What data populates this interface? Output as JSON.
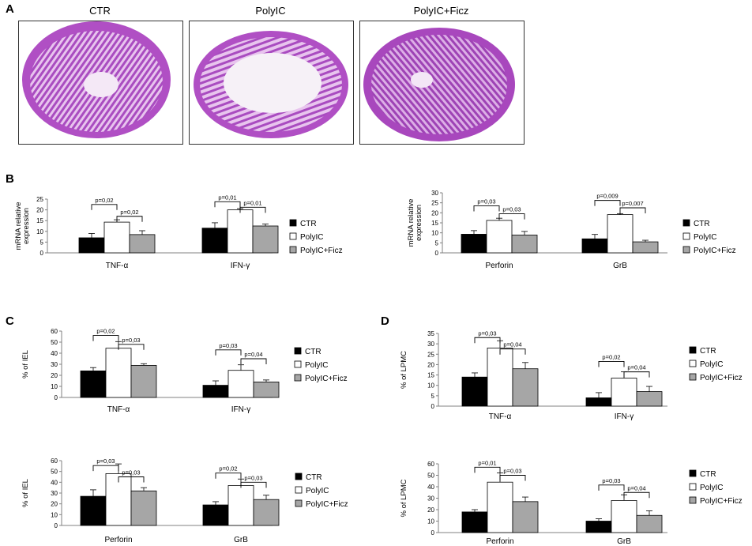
{
  "panel_letters": [
    "A",
    "B",
    "C",
    "D"
  ],
  "micrographs": [
    {
      "label": "CTR"
    },
    {
      "label": "PolyIC"
    },
    {
      "label": "PolyIC+Ficz"
    }
  ],
  "colors": {
    "CTR": "#000000",
    "PolyIC": "#ffffff",
    "PolyIC+Ficz": "#a6a6a6",
    "tissue": "#b04fc4",
    "tissue_light": "#e2b4ea"
  },
  "chart_data": [
    {
      "id": "B-left",
      "type": "bar",
      "categories": [
        "TNF-α",
        "IFN-γ"
      ],
      "series": [
        {
          "name": "CTR",
          "values": [
            7,
            11.5
          ],
          "err": [
            2,
            2.5
          ]
        },
        {
          "name": "PolyIC",
          "values": [
            14.3,
            20
          ],
          "err": [
            1.1,
            0.6
          ]
        },
        {
          "name": "PolyIC+Ficz",
          "values": [
            8.5,
            12.5
          ],
          "err": [
            1.8,
            0.9
          ]
        }
      ],
      "ylabel": "mRNA relative expression",
      "ylabel_lines": [
        "mRNA relative",
        "expression"
      ],
      "ylim": [
        0,
        25
      ],
      "yticks": [
        0,
        5,
        10,
        15,
        20,
        25
      ],
      "legend": [
        "CTR",
        "PolyIC",
        "PolyIC+Ficz"
      ],
      "annotations": [
        {
          "text": "p=0,02",
          "cat": 0,
          "from": 0,
          "to": 1,
          "y": 22.5
        },
        {
          "text": "p=0,02",
          "cat": 0,
          "from": 1,
          "to": 2,
          "y": 17
        },
        {
          "text": "p=0,01",
          "cat": 1,
          "from": 0,
          "to": 1,
          "y": 23.8
        },
        {
          "text": "p=0,01",
          "cat": 1,
          "from": 1,
          "to": 2,
          "y": 21.2
        }
      ]
    },
    {
      "id": "B-right",
      "type": "bar",
      "categories": [
        "Perforin",
        "GrB"
      ],
      "series": [
        {
          "name": "CTR",
          "values": [
            9.3,
            7
          ],
          "err": [
            1.8,
            2.2
          ]
        },
        {
          "name": "PolyIC",
          "values": [
            16.2,
            19.1
          ],
          "err": [
            1.1,
            0.5
          ]
        },
        {
          "name": "PolyIC+Ficz",
          "values": [
            8.9,
            5.5
          ],
          "err": [
            1.8,
            0.8
          ]
        }
      ],
      "ylabel": "mRNA relative expression",
      "ylabel_lines": [
        "mRNA relative",
        "expression"
      ],
      "ylim": [
        0,
        30
      ],
      "yticks": [
        0,
        5,
        10,
        15,
        20,
        25,
        30
      ],
      "legend": [
        "CTR",
        "PolyIC",
        "PolyIC+Ficz"
      ],
      "annotations": [
        {
          "text": "p=0,03",
          "cat": 0,
          "from": 0,
          "to": 1,
          "y": 23.5
        },
        {
          "text": "p=0,03",
          "cat": 0,
          "from": 1,
          "to": 2,
          "y": 19.5
        },
        {
          "text": "p=0,009",
          "cat": 1,
          "from": 0,
          "to": 1,
          "y": 26.2
        },
        {
          "text": "p=0,007",
          "cat": 1,
          "from": 1,
          "to": 2,
          "y": 22.5
        }
      ]
    },
    {
      "id": "C-top",
      "type": "bar",
      "categories": [
        "TNF-α",
        "IFN-γ"
      ],
      "series": [
        {
          "name": "CTR",
          "values": [
            24,
            11
          ],
          "err": [
            3,
            4
          ]
        },
        {
          "name": "PolyIC",
          "values": [
            44.5,
            24.5
          ],
          "err": [
            6,
            5
          ]
        },
        {
          "name": "PolyIC+Ficz",
          "values": [
            29,
            14
          ],
          "err": [
            1.5,
            1.8
          ]
        }
      ],
      "ylabel": "% of IEL",
      "ylim": [
        0,
        60
      ],
      "yticks": [
        0,
        10,
        20,
        30,
        40,
        50,
        60
      ],
      "legend": [
        "CTR",
        "PolyIC",
        "PolyIC+Ficz"
      ],
      "annotations": [
        {
          "text": "p=0,02",
          "cat": 0,
          "from": 0,
          "to": 1,
          "y": 56
        },
        {
          "text": "p=0,03",
          "cat": 0,
          "from": 1,
          "to": 2,
          "y": 48
        },
        {
          "text": "p=0,03",
          "cat": 1,
          "from": 0,
          "to": 1,
          "y": 43
        },
        {
          "text": "p=0,04",
          "cat": 1,
          "from": 1,
          "to": 2,
          "y": 35
        }
      ]
    },
    {
      "id": "D-top",
      "type": "bar",
      "categories": [
        "TNF-α",
        "IFN-γ"
      ],
      "series": [
        {
          "name": "CTR",
          "values": [
            14,
            4
          ],
          "err": [
            2,
            2.5
          ]
        },
        {
          "name": "PolyIC",
          "values": [
            28,
            13.5
          ],
          "err": [
            3.5,
            3
          ]
        },
        {
          "name": "PolyIC+Ficz",
          "values": [
            18,
            7
          ],
          "err": [
            3,
            2.5
          ]
        }
      ],
      "ylabel": "% of LPMC",
      "ylim": [
        0,
        35
      ],
      "yticks": [
        0,
        5,
        10,
        15,
        20,
        25,
        30,
        35
      ],
      "legend": [
        "CTR",
        "PolyIC",
        "PolyIC+Ficz"
      ],
      "annotations": [
        {
          "text": "p=0,03",
          "cat": 0,
          "from": 0,
          "to": 1,
          "y": 33
        },
        {
          "text": "p=0,04",
          "cat": 0,
          "from": 1,
          "to": 2,
          "y": 27.5
        },
        {
          "text": "p=0,02",
          "cat": 1,
          "from": 0,
          "to": 1,
          "y": 21.5
        },
        {
          "text": "p=0,04",
          "cat": 1,
          "from": 1,
          "to": 2,
          "y": 16.5
        }
      ]
    },
    {
      "id": "C-bottom",
      "type": "bar",
      "categories": [
        "Perforin",
        "GrB"
      ],
      "series": [
        {
          "name": "CTR",
          "values": [
            27,
            19
          ],
          "err": [
            6,
            3
          ]
        },
        {
          "name": "PolyIC",
          "values": [
            48,
            37
          ],
          "err": [
            9,
            6
          ]
        },
        {
          "name": "PolyIC+Ficz",
          "values": [
            32,
            24
          ],
          "err": [
            3,
            4
          ]
        }
      ],
      "ylabel": "% of IEL",
      "ylim": [
        0,
        60
      ],
      "yticks": [
        0,
        10,
        20,
        30,
        40,
        50,
        60
      ],
      "legend": [
        "CTR",
        "PolyIC",
        "PolyIC+Ficz"
      ],
      "annotations": [
        {
          "text": "p=0,03",
          "cat": 0,
          "from": 0,
          "to": 1,
          "y": 55.5
        },
        {
          "text": "p=0,03",
          "cat": 0,
          "from": 1,
          "to": 2,
          "y": 45
        },
        {
          "text": "p=0,02",
          "cat": 1,
          "from": 0,
          "to": 1,
          "y": 48.5
        },
        {
          "text": "p=0,03",
          "cat": 1,
          "from": 1,
          "to": 2,
          "y": 40
        }
      ]
    },
    {
      "id": "D-bottom",
      "type": "bar",
      "categories": [
        "Perforin",
        "GrB"
      ],
      "series": [
        {
          "name": "CTR",
          "values": [
            18,
            10
          ],
          "err": [
            2,
            2
          ]
        },
        {
          "name": "PolyIC",
          "values": [
            44,
            28
          ],
          "err": [
            8,
            5
          ]
        },
        {
          "name": "PolyIC+Ficz",
          "values": [
            27,
            15
          ],
          "err": [
            4,
            4
          ]
        }
      ],
      "ylabel": "% of LPMC",
      "ylim": [
        0,
        60
      ],
      "yticks": [
        0,
        10,
        20,
        30,
        40,
        50,
        60
      ],
      "legend": [
        "CTR",
        "PolyIC",
        "PolyIC+Ficz"
      ],
      "annotations": [
        {
          "text": "p=0,01",
          "cat": 0,
          "from": 0,
          "to": 1,
          "y": 57
        },
        {
          "text": "p=0,03",
          "cat": 0,
          "from": 1,
          "to": 2,
          "y": 50
        },
        {
          "text": "p=0,03",
          "cat": 1,
          "from": 0,
          "to": 1,
          "y": 41.5
        },
        {
          "text": "p=0,04",
          "cat": 1,
          "from": 1,
          "to": 2,
          "y": 35
        }
      ]
    }
  ]
}
